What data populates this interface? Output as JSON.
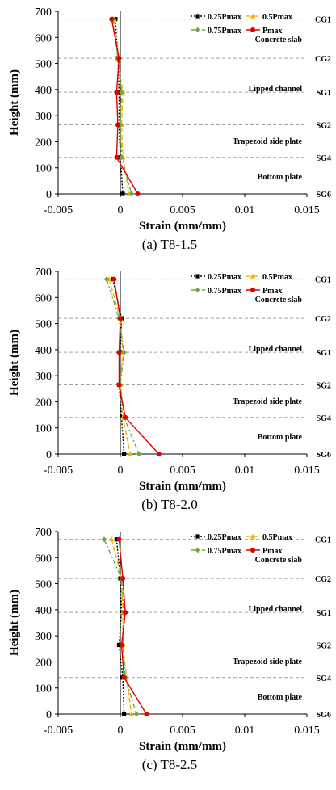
{
  "colors": {
    "0.25Pmax": "#000000",
    "0.5Pmax": "#f5b800",
    "0.75Pmax": "#6aa84f",
    "Pmax": "#e00000",
    "divider": "#a0a0a0"
  },
  "chart_data": [
    {
      "type": "line",
      "caption": "(a) T8-1.5",
      "xlabel": "Strain (mm/mm)",
      "ylabel": "Height (mm)",
      "xlim": [
        -0.005,
        0.015
      ],
      "ylim": [
        0,
        700
      ],
      "x_ticks": [
        "-0.005",
        "0",
        "0.005",
        "0.01",
        "0.015"
      ],
      "y_ticks": [
        "0",
        "100",
        "200",
        "300",
        "400",
        "500",
        "600",
        "700"
      ],
      "orientation": "vertical-profile",
      "grid": false,
      "legend_position": "top-right",
      "gauge_labels": [
        {
          "label": "CG1",
          "height": 670
        },
        {
          "label": "CG2",
          "height": 520
        },
        {
          "label": "SG1",
          "height": 390
        },
        {
          "label": "SG2",
          "height": 265
        },
        {
          "label": "SG4",
          "height": 140
        },
        {
          "label": "SG6",
          "height": 0
        }
      ],
      "region_labels": [
        {
          "label": "Concrete slab",
          "height": 595
        },
        {
          "label": "Lipped channel",
          "height": 405
        },
        {
          "label": "Trapezoid side plate",
          "height": 205
        },
        {
          "label": "Bottom plate",
          "height": 68
        }
      ],
      "heights": [
        670,
        520,
        390,
        265,
        140,
        0
      ],
      "series": [
        {
          "name": "0.25Pmax",
          "values": [
            -0.0004,
            -0.0002,
            -0.0001,
            -0.0001,
            0.0,
            0.0002
          ]
        },
        {
          "name": "0.5Pmax",
          "values": [
            -0.0005,
            -0.0002,
            0.0002,
            0.0001,
            0.0002,
            0.0007
          ]
        },
        {
          "name": "0.75Pmax",
          "values": [
            -0.0006,
            -0.0002,
            0.0001,
            0.0,
            0.0001,
            0.0009
          ]
        },
        {
          "name": "Pmax",
          "values": [
            -0.0007,
            -0.0001,
            -0.0003,
            -0.0002,
            -0.0003,
            0.0014
          ]
        }
      ]
    },
    {
      "type": "line",
      "caption": "(b) T8-2.0",
      "xlabel": "Strain (mm/mm)",
      "ylabel": "Height (mm)",
      "xlim": [
        -0.005,
        0.015
      ],
      "ylim": [
        0,
        700
      ],
      "x_ticks": [
        "-0.005",
        "0",
        "0.005",
        "0.01",
        "0.015"
      ],
      "y_ticks": [
        "0",
        "100",
        "200",
        "300",
        "400",
        "500",
        "600",
        "700"
      ],
      "orientation": "vertical-profile",
      "grid": false,
      "legend_position": "top-right",
      "gauge_labels": [
        {
          "label": "CG1",
          "height": 670
        },
        {
          "label": "CG2",
          "height": 520
        },
        {
          "label": "SG1",
          "height": 390
        },
        {
          "label": "SG2",
          "height": 265
        },
        {
          "label": "SG4",
          "height": 140
        },
        {
          "label": "SG6",
          "height": 0
        }
      ],
      "region_labels": [
        {
          "label": "Concrete slab",
          "height": 595
        },
        {
          "label": "Lipped channel",
          "height": 405
        },
        {
          "label": "Trapezoid side plate",
          "height": 205
        },
        {
          "label": "Bottom plate",
          "height": 68
        }
      ],
      "heights": [
        670,
        520,
        390,
        265,
        140,
        0
      ],
      "series": [
        {
          "name": "0.25Pmax",
          "values": [
            -0.0006,
            0.0001,
            0.0,
            -0.0001,
            0.0001,
            0.0003
          ]
        },
        {
          "name": "0.5Pmax",
          "values": [
            -0.0009,
            0.0,
            0.0002,
            0.0,
            0.0002,
            0.0008
          ]
        },
        {
          "name": "0.75Pmax",
          "values": [
            -0.0011,
            -0.0001,
            0.0003,
            0.0,
            0.0003,
            0.0015
          ]
        },
        {
          "name": "Pmax",
          "values": [
            -0.0005,
            0.0,
            -0.0001,
            -0.0001,
            0.0004,
            0.0031
          ]
        }
      ]
    },
    {
      "type": "line",
      "caption": "(c) T8-2.5",
      "xlabel": "Strain (mm/mm)",
      "ylabel": "Height (mm)",
      "xlim": [
        -0.005,
        0.015
      ],
      "ylim": [
        0,
        700
      ],
      "x_ticks": [
        "-0.005",
        "0",
        "0.005",
        "0.01",
        "0.015"
      ],
      "y_ticks": [
        "0",
        "100",
        "200",
        "300",
        "400",
        "500",
        "600",
        "700"
      ],
      "orientation": "vertical-profile",
      "grid": false,
      "legend_position": "top-right",
      "gauge_labels": [
        {
          "label": "CG1",
          "height": 670
        },
        {
          "label": "CG2",
          "height": 520
        },
        {
          "label": "SG1",
          "height": 390
        },
        {
          "label": "SG2",
          "height": 265
        },
        {
          "label": "SG4",
          "height": 140
        },
        {
          "label": "SG6",
          "height": 0
        }
      ],
      "region_labels": [
        {
          "label": "Concrete slab",
          "height": 595
        },
        {
          "label": "Lipped channel",
          "height": 405
        },
        {
          "label": "Trapezoid side plate",
          "height": 205
        },
        {
          "label": "Bottom plate",
          "height": 68
        }
      ],
      "heights": [
        670,
        520,
        390,
        265,
        140,
        0
      ],
      "series": [
        {
          "name": "0.25Pmax",
          "values": [
            -0.0003,
            0.0,
            0.0001,
            -0.0001,
            0.0002,
            0.0003
          ]
        },
        {
          "name": "0.5Pmax",
          "values": [
            -0.0007,
            0.0001,
            0.0002,
            0.0002,
            0.0005,
            0.0009
          ]
        },
        {
          "name": "0.75Pmax",
          "values": [
            -0.0013,
            0.0001,
            0.0003,
            0.0002,
            0.0004,
            0.0013
          ]
        },
        {
          "name": "Pmax",
          "values": [
            -0.0001,
            0.0002,
            0.0004,
            0.0001,
            0.0003,
            0.0021
          ]
        }
      ]
    }
  ]
}
